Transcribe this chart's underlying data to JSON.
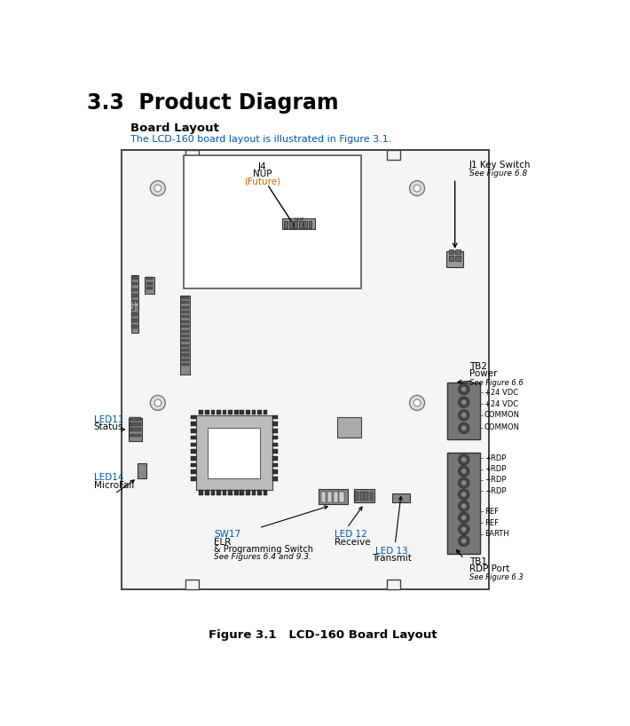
{
  "title": "3.3  Product Diagram",
  "subtitle": "Board Layout",
  "description": "The LCD-160 board layout is illustrated in Figure 3.1.",
  "figure_caption": "Figure 3.1   LCD-160 Board Layout",
  "bg_color": "#ffffff",
  "board_facecolor": "#f5f5f5",
  "board_border_color": "#444444",
  "text_color": "#000000",
  "blue_color": "#0055aa",
  "orange_color": "#cc6600",
  "dark_gray": "#555555",
  "med_gray": "#888888",
  "light_gray": "#cccccc",
  "comp_gray": "#999999",
  "title_fontsize": 17,
  "subtitle_fontsize": 9.5,
  "desc_fontsize": 8,
  "caption_fontsize": 9.5,
  "label_fontsize": 7.5,
  "small_fontsize": 6.5
}
